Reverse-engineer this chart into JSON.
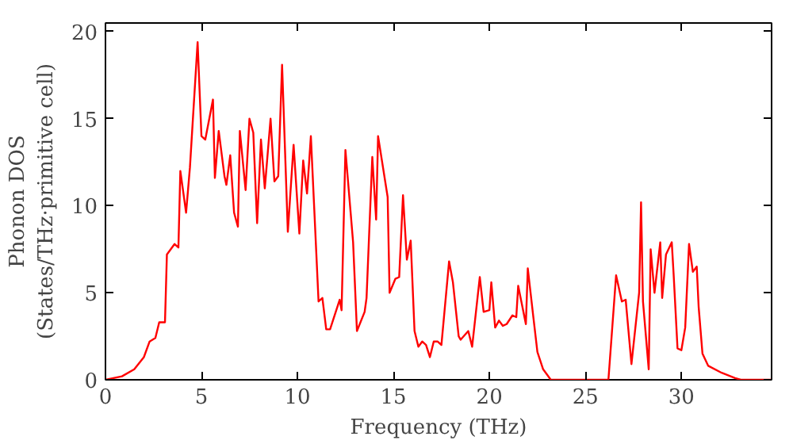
{
  "chart_data": {
    "type": "line",
    "xlabel": "Frequency (THz)",
    "ylabel": "Phonon DOS\n(States/THz·primitive cell)",
    "xlim": [
      0,
      34.7
    ],
    "ylim": [
      0,
      20.5
    ],
    "xticks": [
      0,
      5,
      10,
      15,
      20,
      25,
      30
    ],
    "yticks": [
      0,
      5,
      10,
      15,
      20
    ],
    "grid": false,
    "series": [
      {
        "color": "#ff0000",
        "x": [
          0,
          0.86,
          1.5,
          2.0,
          2.3,
          2.6,
          2.8,
          3.1,
          3.2,
          3.6,
          3.8,
          3.9,
          4.2,
          4.4,
          4.8,
          5.0,
          5.2,
          5.6,
          5.7,
          5.9,
          6.2,
          6.3,
          6.5,
          6.7,
          6.9,
          7.0,
          7.3,
          7.5,
          7.7,
          7.9,
          8.1,
          8.3,
          8.6,
          8.8,
          9.0,
          9.2,
          9.5,
          9.8,
          10.1,
          10.3,
          10.5,
          10.7,
          11.1,
          11.3,
          11.5,
          11.7,
          12.2,
          12.3,
          12.5,
          12.9,
          13.1,
          13.5,
          13.6,
          13.9,
          14.1,
          14.2,
          14.7,
          14.8,
          15.1,
          15.3,
          15.5,
          15.7,
          15.9,
          16.1,
          16.3,
          16.5,
          16.7,
          16.9,
          17.1,
          17.3,
          17.5,
          17.9,
          18.1,
          18.4,
          18.5,
          18.9,
          19.1,
          19.5,
          19.7,
          20.0,
          20.1,
          20.3,
          20.5,
          20.7,
          20.9,
          21.2,
          21.4,
          21.5,
          21.9,
          22.0,
          22.3,
          22.5,
          22.8,
          23.2,
          26.2,
          26.6,
          26.9,
          27.1,
          27.4,
          27.8,
          27.9,
          28.0,
          28.3,
          28.4,
          28.6,
          28.9,
          29.0,
          29.2,
          29.5,
          29.6,
          29.8,
          30.0,
          30.2,
          30.4,
          30.6,
          30.8,
          30.9,
          31.1,
          31.4,
          32.1,
          32.8,
          33.1,
          34.7
        ],
        "values": [
          0,
          0.2,
          0.6,
          1.3,
          2.2,
          2.4,
          3.3,
          3.3,
          7.2,
          7.8,
          7.6,
          12.0,
          9.6,
          12.2,
          19.4,
          14.0,
          13.8,
          16.1,
          11.6,
          14.3,
          11.7,
          11.2,
          12.9,
          9.6,
          8.8,
          14.3,
          10.9,
          15.0,
          14.2,
          9.0,
          13.8,
          11.0,
          15.0,
          11.4,
          11.7,
          18.1,
          8.5,
          13.5,
          8.4,
          12.6,
          10.7,
          14.0,
          4.5,
          4.7,
          2.9,
          2.9,
          4.6,
          4.0,
          13.2,
          7.9,
          2.8,
          3.9,
          4.7,
          12.8,
          9.2,
          14.0,
          10.5,
          5.0,
          5.8,
          5.9,
          10.6,
          6.9,
          8.0,
          2.8,
          1.9,
          2.2,
          2.0,
          1.3,
          2.2,
          2.2,
          2.0,
          6.8,
          5.6,
          2.5,
          2.3,
          2.8,
          1.9,
          5.9,
          3.9,
          4.0,
          5.6,
          3.0,
          3.4,
          3.1,
          3.2,
          3.7,
          3.6,
          5.4,
          3.2,
          6.4,
          3.5,
          1.6,
          0.6,
          0,
          0,
          6.0,
          4.5,
          4.6,
          0.9,
          5.0,
          10.2,
          4.5,
          0.6,
          7.5,
          5.0,
          7.9,
          4.7,
          7.2,
          7.9,
          6.0,
          1.8,
          1.7,
          3.0,
          7.8,
          6.2,
          6.5,
          4.2,
          1.5,
          0.8,
          0.4,
          0.1,
          0,
          0
        ]
      }
    ]
  }
}
